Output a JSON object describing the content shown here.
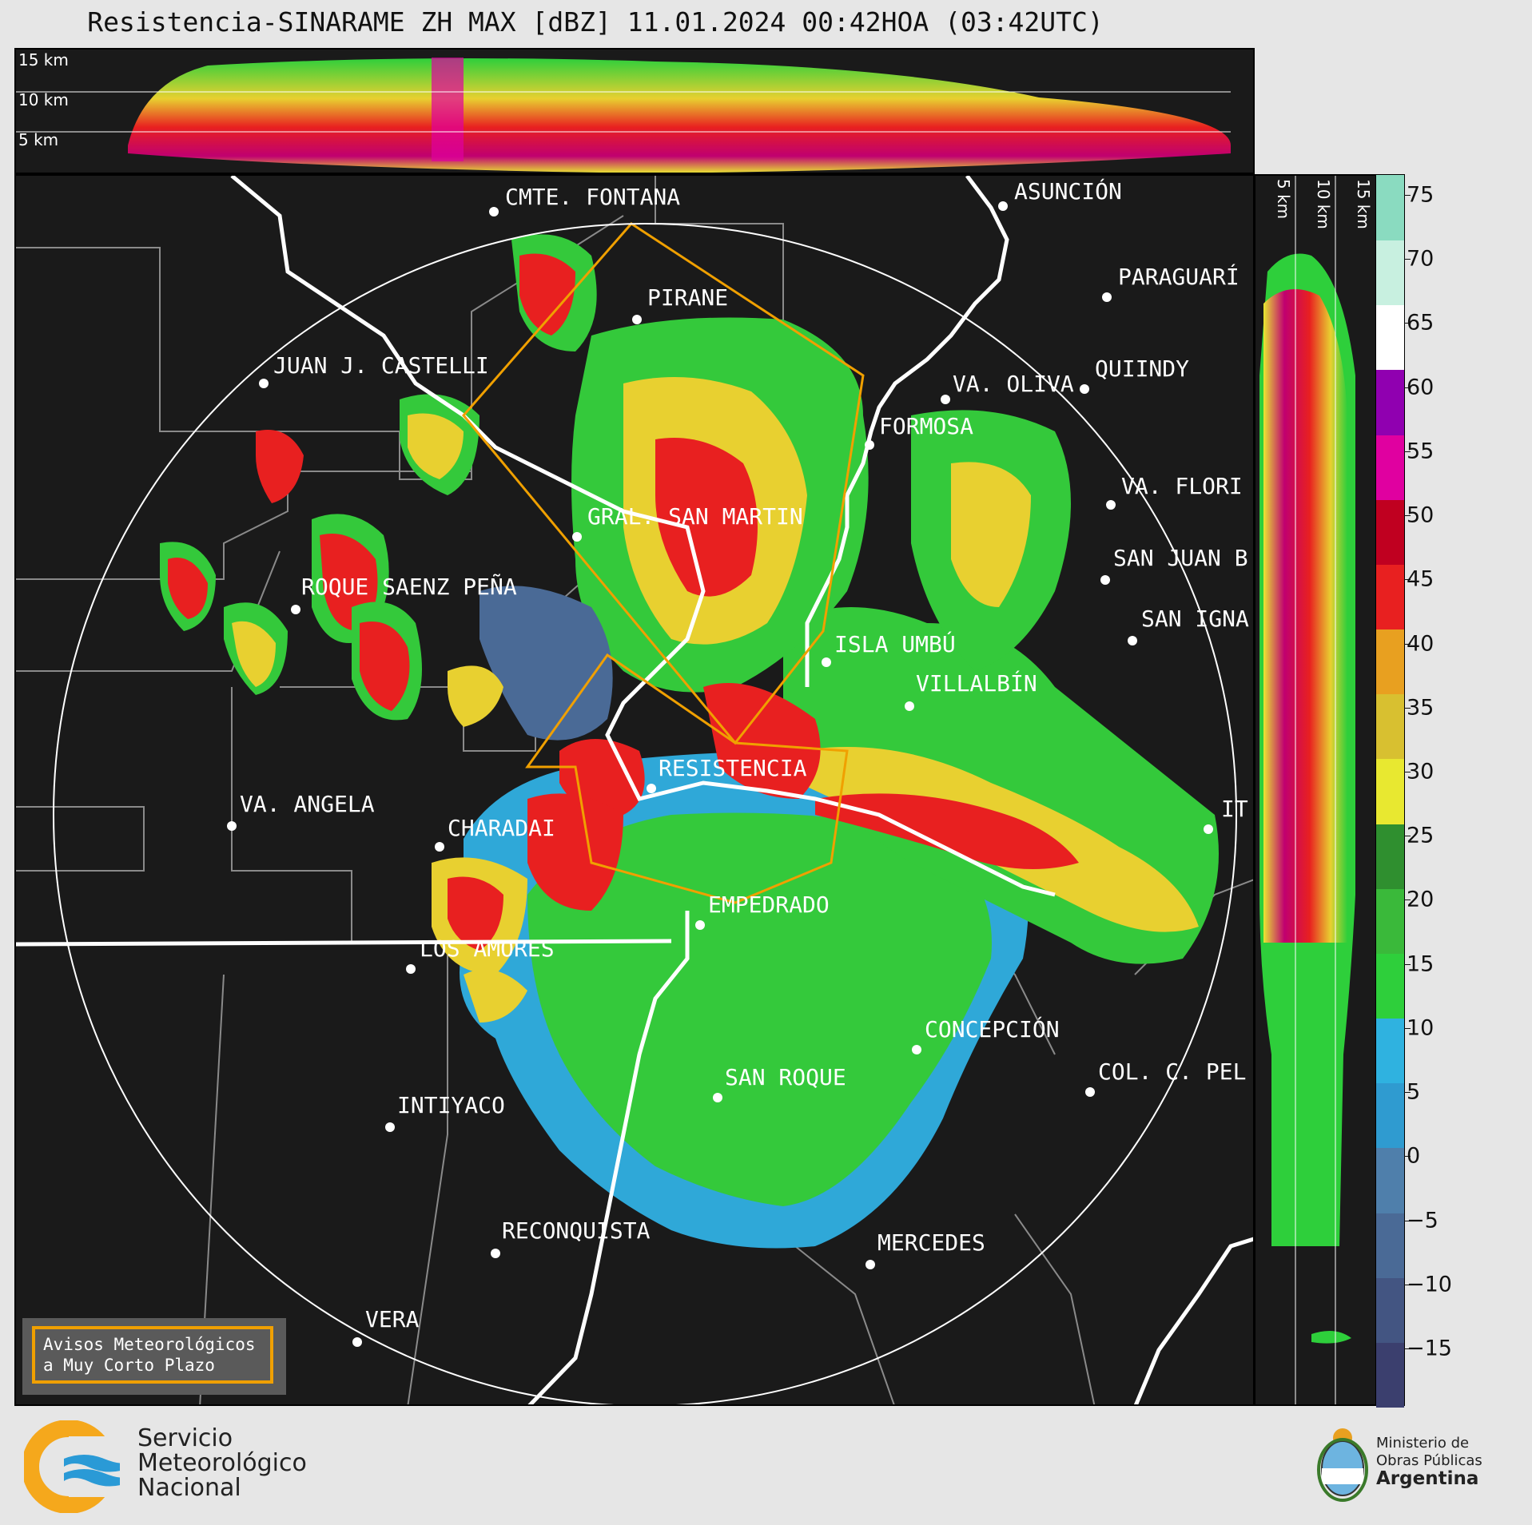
{
  "title": "Resistencia-SINARAME ZH MAX [dBZ] 11.01.2024 00:42HOA (03:42UTC)",
  "top_panel": {
    "altitude_labels": [
      "15 km",
      "10 km",
      "5 km"
    ]
  },
  "side_panel": {
    "altitude_labels": [
      "5 km",
      "10 km",
      "15 km"
    ]
  },
  "map": {
    "cities": [
      {
        "name": "CMTE. FONTANA"
      },
      {
        "name": "ASUNCIÓN"
      },
      {
        "name": "PARAGUARÍ"
      },
      {
        "name": "PIRANE"
      },
      {
        "name": "JUAN J. CASTELLI"
      },
      {
        "name": "VA. OLIVA"
      },
      {
        "name": "QUIINDY"
      },
      {
        "name": "FORMOSA"
      },
      {
        "name": "VA. FLORI"
      },
      {
        "name": "GRAL. SAN MARTIN"
      },
      {
        "name": "SAN JUAN B"
      },
      {
        "name": "ROQUE SAENZ PEÑA"
      },
      {
        "name": "SAN IGNA"
      },
      {
        "name": "ISLA UMBÚ"
      },
      {
        "name": "VILLALBÍN"
      },
      {
        "name": "RESISTENCIA"
      },
      {
        "name": "VA. ANGELA"
      },
      {
        "name": "CHARADAI"
      },
      {
        "name": "IT"
      },
      {
        "name": "EMPEDRADO"
      },
      {
        "name": "LOS AMORES"
      },
      {
        "name": "CONCEPCIÓN"
      },
      {
        "name": "COL. C. PEL"
      },
      {
        "name": "SAN ROQUE"
      },
      {
        "name": "INTIYACO"
      },
      {
        "name": "RECONQUISTA"
      },
      {
        "name": "MERCEDES"
      },
      {
        "name": "VERA"
      }
    ],
    "legend": {
      "line1": "Avisos Meteorológicos",
      "line2": "a Muy Corto Plazo",
      "color": "#f0a000"
    }
  },
  "colorbar": {
    "unit": "dBZ",
    "ticks": [
      "75",
      "70",
      "65",
      "60",
      "55",
      "50",
      "45",
      "40",
      "35",
      "30",
      "25",
      "20",
      "15",
      "10",
      "5",
      "0",
      "−5",
      "−10",
      "−15"
    ],
    "colors": [
      "#3b3f6e",
      "#435582",
      "#4a6a96",
      "#4f7fab",
      "#2f9bd0",
      "#2fb2e0",
      "#2ecf3b",
      "#3ab93a",
      "#2f8f2f",
      "#e8e830",
      "#d8c030",
      "#e8a020",
      "#e82020",
      "#c00020",
      "#e000a0",
      "#9000b0",
      "#ffffff",
      "#c8f0e0",
      "#8adbc0"
    ]
  },
  "footer": {
    "org_line1": "Servicio",
    "org_line2": "Meteorológico",
    "org_line3": "Nacional",
    "ministry_line1": "Ministerio de",
    "ministry_line2": "Obras Públicas",
    "ministry_line3": "Argentina"
  }
}
